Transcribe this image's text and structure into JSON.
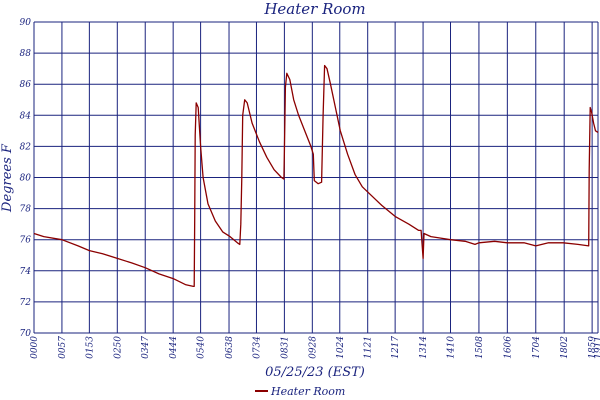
{
  "chart_data": {
    "type": "line",
    "title": "Heater Room",
    "xlabel": "05/25/23 (EST)",
    "ylabel": "Degrees F",
    "ylim": [
      70,
      90
    ],
    "yticks": [
      70,
      72,
      74,
      76,
      78,
      80,
      82,
      84,
      86,
      88,
      90
    ],
    "xlim": [
      "00:00",
      "19:11"
    ],
    "xticks": [
      "0000",
      "0057",
      "0153",
      "0250",
      "0347",
      "0444",
      "0540",
      "0638",
      "0734",
      "0831",
      "0928",
      "1024",
      "1121",
      "1217",
      "1314",
      "1410",
      "1508",
      "1606",
      "1704",
      "1802",
      "1859",
      "1911"
    ],
    "grid": true,
    "legend_position": "bottom-center",
    "colors": {
      "line": "#8b0000",
      "grid": "#1a237e",
      "text": "#1a237e",
      "background": "#ffffff"
    },
    "series": [
      {
        "name": "Heater Room",
        "points": [
          [
            "00:00",
            76.4
          ],
          [
            "00:20",
            76.2
          ],
          [
            "00:57",
            76.0
          ],
          [
            "01:30",
            75.6
          ],
          [
            "01:53",
            75.3
          ],
          [
            "02:20",
            75.1
          ],
          [
            "02:50",
            74.8
          ],
          [
            "03:20",
            74.5
          ],
          [
            "03:47",
            74.2
          ],
          [
            "04:15",
            73.8
          ],
          [
            "04:44",
            73.5
          ],
          [
            "05:10",
            73.1
          ],
          [
            "05:25",
            73.0
          ],
          [
            "05:27",
            73.0
          ],
          [
            "05:28",
            77.3
          ],
          [
            "05:29",
            82.7
          ],
          [
            "05:31",
            84.8
          ],
          [
            "05:35",
            84.5
          ],
          [
            "05:40",
            82.0
          ],
          [
            "05:45",
            80.0
          ],
          [
            "05:55",
            78.3
          ],
          [
            "06:10",
            77.2
          ],
          [
            "06:25",
            76.5
          ],
          [
            "06:40",
            76.2
          ],
          [
            "06:55",
            75.8
          ],
          [
            "07:00",
            75.7
          ],
          [
            "07:02",
            77.0
          ],
          [
            "07:04",
            80.0
          ],
          [
            "07:06",
            84.0
          ],
          [
            "07:10",
            85.0
          ],
          [
            "07:15",
            84.8
          ],
          [
            "07:25",
            83.5
          ],
          [
            "07:40",
            82.3
          ],
          [
            "07:55",
            81.3
          ],
          [
            "08:10",
            80.5
          ],
          [
            "08:25",
            80.0
          ],
          [
            "08:30",
            79.9
          ],
          [
            "08:31",
            81.7
          ],
          [
            "08:33",
            85.8
          ],
          [
            "08:36",
            86.7
          ],
          [
            "08:42",
            86.3
          ],
          [
            "08:50",
            85.0
          ],
          [
            "09:00",
            84.0
          ],
          [
            "09:15",
            82.8
          ],
          [
            "09:25",
            82.0
          ],
          [
            "09:30",
            81.5
          ],
          [
            "09:32",
            79.8
          ],
          [
            "09:40",
            79.6
          ],
          [
            "09:47",
            79.7
          ],
          [
            "09:50",
            84.0
          ],
          [
            "09:53",
            87.2
          ],
          [
            "09:58",
            87.0
          ],
          [
            "10:05",
            86.0
          ],
          [
            "10:15",
            84.5
          ],
          [
            "10:25",
            83.0
          ],
          [
            "10:40",
            81.5
          ],
          [
            "10:55",
            80.2
          ],
          [
            "11:10",
            79.4
          ],
          [
            "11:30",
            78.8
          ],
          [
            "11:50",
            78.2
          ],
          [
            "12:17",
            77.5
          ],
          [
            "12:45",
            77.0
          ],
          [
            "13:05",
            76.6
          ],
          [
            "13:10",
            76.6
          ],
          [
            "13:14",
            74.8
          ],
          [
            "13:16",
            76.4
          ],
          [
            "13:30",
            76.2
          ],
          [
            "13:50",
            76.1
          ],
          [
            "14:10",
            76.0
          ],
          [
            "14:40",
            75.9
          ],
          [
            "15:00",
            75.7
          ],
          [
            "15:08",
            75.8
          ],
          [
            "15:40",
            75.9
          ],
          [
            "16:06",
            75.8
          ],
          [
            "16:40",
            75.8
          ],
          [
            "17:04",
            75.6
          ],
          [
            "17:30",
            75.8
          ],
          [
            "18:00",
            75.8
          ],
          [
            "18:30",
            75.7
          ],
          [
            "18:52",
            75.6
          ],
          [
            "18:53",
            80.5
          ],
          [
            "18:55",
            84.5
          ],
          [
            "18:58",
            84.2
          ],
          [
            "19:02",
            83.5
          ],
          [
            "19:06",
            83.0
          ],
          [
            "19:11",
            82.9
          ]
        ]
      }
    ]
  }
}
